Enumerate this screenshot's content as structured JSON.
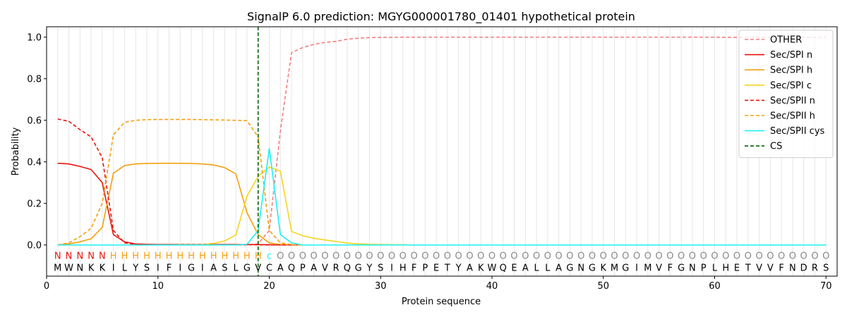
{
  "chart_data": {
    "type": "line",
    "title": "SignalP 6.0 prediction: MGYG000001780_01401 hypothetical protein",
    "xlabel": "Protein sequence",
    "ylabel": "Probability",
    "xlim": [
      0,
      71
    ],
    "ylim": [
      -0.15,
      1.05
    ],
    "xticks": [
      0,
      10,
      20,
      30,
      40,
      50,
      60,
      70
    ],
    "yticks": [
      0.0,
      0.2,
      0.4,
      0.6,
      0.8,
      1.0
    ],
    "legend_position": "top-right",
    "cleavage_site": 19,
    "sequence": [
      "M",
      "W",
      "N",
      "K",
      "K",
      "I",
      "L",
      "Y",
      "S",
      "I",
      "F",
      "I",
      "G",
      "I",
      "A",
      "S",
      "L",
      "G",
      "V",
      "C",
      "A",
      "Q",
      "P",
      "A",
      "V",
      "R",
      "Q",
      "G",
      "Y",
      "S",
      "I",
      "H",
      "F",
      "P",
      "E",
      "T",
      "Y",
      "A",
      "K",
      "W",
      "Q",
      "E",
      "A",
      "L",
      "L",
      "A",
      "G",
      "N",
      "G",
      "K",
      "M",
      "G",
      "I",
      "M",
      "V",
      "F",
      "G",
      "N",
      "P",
      "L",
      "H",
      "E",
      "T",
      "V",
      "V",
      "F",
      "N",
      "D",
      "R",
      "S"
    ],
    "region_labels": [
      "N",
      "N",
      "N",
      "N",
      "N",
      "H",
      "H",
      "H",
      "H",
      "H",
      "H",
      "H",
      "H",
      "H",
      "H",
      "H",
      "H",
      "H",
      "H",
      "c",
      "O",
      "O",
      "O",
      "O",
      "O",
      "O",
      "O",
      "O",
      "O",
      "O",
      "O",
      "O",
      "O",
      "O",
      "O",
      "O",
      "O",
      "O",
      "O",
      "O",
      "O",
      "O",
      "O",
      "O",
      "O",
      "O",
      "O",
      "O",
      "O",
      "O",
      "O",
      "O",
      "O",
      "O",
      "O",
      "O",
      "O",
      "O",
      "O",
      "O",
      "O",
      "O",
      "O",
      "O",
      "O",
      "O",
      "O",
      "O",
      "O",
      "O"
    ],
    "series": [
      {
        "name": "OTHER",
        "color": "#f08080",
        "dash": "dashed",
        "values": [
          0.0,
          0.0,
          0.0,
          0.0,
          0.0,
          0.0,
          0.0,
          0.0,
          0.0,
          0.0,
          0.0,
          0.0,
          0.0,
          0.0,
          0.0,
          0.0,
          0.0,
          0.0,
          0.005,
          0.07,
          0.55,
          0.925,
          0.95,
          0.965,
          0.975,
          0.98,
          0.99,
          0.995,
          0.998,
          0.999,
          0.999,
          1.0,
          1.0,
          1.0,
          1.0,
          1.0,
          1.0,
          1.0,
          1.0,
          1.0,
          1.0,
          1.0,
          1.0,
          1.0,
          1.0,
          1.0,
          1.0,
          1.0,
          1.0,
          1.0,
          1.0,
          1.0,
          1.0,
          1.0,
          1.0,
          1.0,
          1.0,
          1.0,
          1.0,
          1.0,
          0.999,
          0.999,
          0.999,
          0.999,
          0.999,
          0.999,
          0.999,
          0.999,
          0.999,
          0.999
        ]
      },
      {
        "name": "Sec/SPI n",
        "color": "#e8140c",
        "dash": "solid",
        "values": [
          0.393,
          0.39,
          0.378,
          0.363,
          0.3,
          0.05,
          0.015,
          0.005,
          0.003,
          0.002,
          0.002,
          0.002,
          0.002,
          0.002,
          0.002,
          0.002,
          0.002,
          0.002,
          0.002,
          0.001,
          0.0,
          0.0,
          0.0,
          0.0,
          0.0,
          0.0,
          0.0,
          0.0,
          0.0,
          0.0,
          0.0,
          0.0,
          0.0,
          0.0,
          0.0,
          0.0,
          0.0,
          0.0,
          0.0,
          0.0,
          0.0,
          0.0,
          0.0,
          0.0,
          0.0,
          0.0,
          0.0,
          0.0,
          0.0,
          0.0,
          0.0,
          0.0,
          0.0,
          0.0,
          0.0,
          0.0,
          0.0,
          0.0,
          0.0,
          0.0,
          0.0,
          0.0,
          0.0,
          0.0,
          0.0,
          0.0,
          0.0,
          0.0,
          0.0,
          0.0
        ]
      },
      {
        "name": "Sec/SPI h",
        "color": "#f5a010",
        "dash": "solid",
        "values": [
          0.0,
          0.005,
          0.015,
          0.03,
          0.085,
          0.345,
          0.382,
          0.39,
          0.392,
          0.393,
          0.393,
          0.393,
          0.392,
          0.39,
          0.385,
          0.372,
          0.342,
          0.155,
          0.05,
          0.01,
          0.003,
          0.001,
          0.0,
          0.0,
          0.0,
          0.0,
          0.0,
          0.0,
          0.0,
          0.0,
          0.0,
          0.0,
          0.0,
          0.0,
          0.0,
          0.0,
          0.0,
          0.0,
          0.0,
          0.0,
          0.0,
          0.0,
          0.0,
          0.0,
          0.0,
          0.0,
          0.0,
          0.0,
          0.0,
          0.0,
          0.0,
          0.0,
          0.0,
          0.0,
          0.0,
          0.0,
          0.0,
          0.0,
          0.0,
          0.0,
          0.0,
          0.0,
          0.0,
          0.0,
          0.0,
          0.0,
          0.0,
          0.0,
          0.0,
          0.0
        ]
      },
      {
        "name": "Sec/SPI c",
        "color": "#f5d41e",
        "dash": "solid",
        "values": [
          0.0,
          0.0,
          0.0,
          0.0,
          0.0,
          0.0,
          0.0,
          0.0,
          0.0,
          0.0,
          0.0,
          0.001,
          0.001,
          0.002,
          0.007,
          0.02,
          0.048,
          0.235,
          0.33,
          0.375,
          0.355,
          0.065,
          0.045,
          0.032,
          0.024,
          0.017,
          0.009,
          0.005,
          0.003,
          0.002,
          0.001,
          0.001,
          0.0,
          0.0,
          0.0,
          0.0,
          0.0,
          0.0,
          0.0,
          0.0,
          0.0,
          0.0,
          0.0,
          0.0,
          0.0,
          0.0,
          0.0,
          0.0,
          0.0,
          0.0,
          0.0,
          0.0,
          0.0,
          0.0,
          0.0,
          0.0,
          0.0,
          0.0,
          0.0,
          0.0,
          0.0,
          0.0,
          0.0,
          0.0,
          0.0,
          0.0,
          0.0,
          0.0,
          0.0,
          0.0
        ]
      },
      {
        "name": "Sec/SPII n",
        "color": "#e8140c",
        "dash": "dashed",
        "values": [
          0.606,
          0.595,
          0.555,
          0.52,
          0.42,
          0.07,
          0.01,
          0.003,
          0.002,
          0.001,
          0.001,
          0.001,
          0.001,
          0.001,
          0.001,
          0.001,
          0.001,
          0.001,
          0.001,
          0.0,
          0.0,
          0.0,
          0.0,
          0.0,
          0.0,
          0.0,
          0.0,
          0.0,
          0.0,
          0.0,
          0.0,
          0.0,
          0.0,
          0.0,
          0.0,
          0.0,
          0.0,
          0.0,
          0.0,
          0.0,
          0.0,
          0.0,
          0.0,
          0.0,
          0.0,
          0.0,
          0.0,
          0.0,
          0.0,
          0.0,
          0.0,
          0.0,
          0.0,
          0.0,
          0.0,
          0.0,
          0.0,
          0.0,
          0.0,
          0.0,
          0.0,
          0.0,
          0.0,
          0.0,
          0.0,
          0.0,
          0.0,
          0.0,
          0.0,
          0.0
        ]
      },
      {
        "name": "Sec/SPII h",
        "color": "#f5a010",
        "dash": "dashed",
        "values": [
          0.0,
          0.01,
          0.04,
          0.08,
          0.2,
          0.53,
          0.59,
          0.6,
          0.603,
          0.604,
          0.604,
          0.604,
          0.604,
          0.603,
          0.602,
          0.601,
          0.6,
          0.598,
          0.52,
          0.07,
          0.01,
          0.002,
          0.0,
          0.0,
          0.0,
          0.0,
          0.0,
          0.0,
          0.0,
          0.0,
          0.0,
          0.0,
          0.0,
          0.0,
          0.0,
          0.0,
          0.0,
          0.0,
          0.0,
          0.0,
          0.0,
          0.0,
          0.0,
          0.0,
          0.0,
          0.0,
          0.0,
          0.0,
          0.0,
          0.0,
          0.0,
          0.0,
          0.0,
          0.0,
          0.0,
          0.0,
          0.0,
          0.0,
          0.0,
          0.0,
          0.0,
          0.0,
          0.0,
          0.0,
          0.0,
          0.0,
          0.0,
          0.0,
          0.0,
          0.0
        ]
      },
      {
        "name": "Sec/SPII cys",
        "color": "#1ef0f5",
        "dash": "solid",
        "values": [
          0.0,
          0.0,
          0.0,
          0.0,
          0.0,
          0.0,
          0.0,
          0.0,
          0.0,
          0.0,
          0.0,
          0.0,
          0.0,
          0.0,
          0.0,
          0.0,
          0.0,
          0.003,
          0.07,
          0.465,
          0.05,
          0.01,
          0.0,
          0.0,
          0.0,
          0.0,
          0.0,
          0.0,
          0.0,
          0.0,
          0.0,
          0.0,
          0.0,
          0.0,
          0.0,
          0.0,
          0.0,
          0.0,
          0.0,
          0.0,
          0.0,
          0.0,
          0.0,
          0.0,
          0.0,
          0.0,
          0.0,
          0.0,
          0.0,
          0.0,
          0.0,
          0.0,
          0.0,
          0.0,
          0.0,
          0.0,
          0.0,
          0.0,
          0.0,
          0.0,
          0.0,
          0.0,
          0.0,
          0.0,
          0.0,
          0.0,
          0.0,
          0.0,
          0.0,
          0.0
        ]
      },
      {
        "name": "CS",
        "color": "#006400",
        "dash": "dashed",
        "values": []
      }
    ],
    "region_colors": {
      "N": "#e8140c",
      "H": "#f5a010",
      "c": "#1ef0f5",
      "O": "#888888"
    },
    "grid": "vertical light lines at each residue"
  }
}
